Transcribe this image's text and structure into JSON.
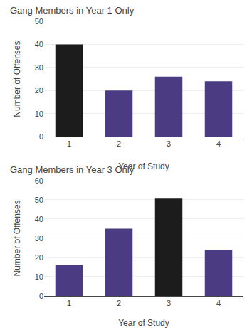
{
  "chart_data": [
    {
      "type": "bar",
      "title": "Gang Members in Year 1 Only",
      "categories": [
        1,
        2,
        3,
        4
      ],
      "values": [
        40,
        20,
        26,
        24
      ],
      "colors": [
        "#1c1c1c",
        "#4a3b82",
        "#4a3b82",
        "#4a3b82"
      ],
      "xlabel": "Year of Study",
      "ylabel": "Number of Offenses",
      "ylim": [
        0,
        50
      ],
      "yticks": [
        0,
        10,
        20,
        30,
        40,
        50
      ],
      "grid": true
    },
    {
      "type": "bar",
      "title": "Gang Members in Year 3 Only",
      "categories": [
        1,
        2,
        3,
        4
      ],
      "values": [
        16,
        35,
        51,
        24
      ],
      "colors": [
        "#4a3b82",
        "#4a3b82",
        "#1c1c1c",
        "#4a3b82"
      ],
      "xlabel": "Year of Study",
      "ylabel": "Number of Offenses",
      "ylim": [
        0,
        60
      ],
      "yticks": [
        0,
        10,
        20,
        30,
        40,
        50,
        60
      ],
      "grid": true
    }
  ]
}
